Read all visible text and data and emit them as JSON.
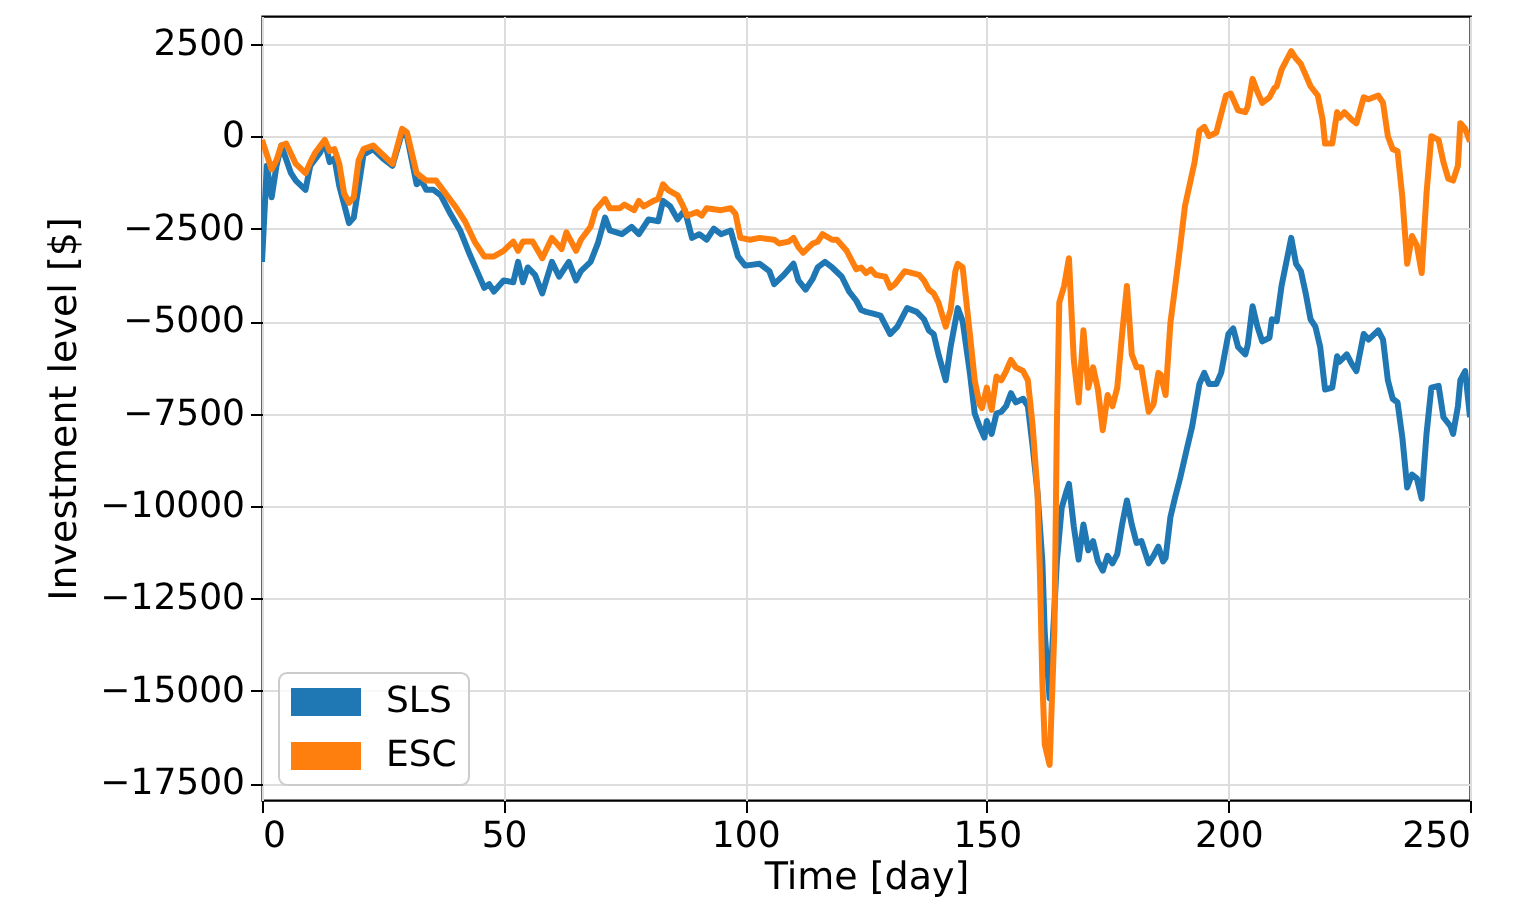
{
  "chart_data": {
    "type": "line",
    "xlabel": "Time [day]",
    "ylabel": "Investment level [$]",
    "xlim": [
      0,
      250
    ],
    "xticks": [
      0,
      50,
      100,
      150,
      200,
      250
    ],
    "ylim": [
      -17950,
      3250
    ],
    "yticks": [
      2500,
      0,
      {
        "value": -2500,
        "label": "−2500"
      },
      {
        "value": -5000,
        "label": "−5000"
      },
      {
        "value": -7500,
        "label": "−7500"
      },
      {
        "value": -10000,
        "label": "−10000"
      },
      {
        "value": -12500,
        "label": "−12500"
      },
      {
        "value": -15000,
        "label": "−15000"
      },
      {
        "value": -17500,
        "label": "−17500"
      }
    ],
    "grid": true,
    "legend": "bottom left",
    "series": [
      {
        "name": "SLS",
        "color": "#1f77b4",
        "x": [
          0,
          1,
          2,
          3,
          4,
          6,
          7,
          9,
          10,
          12,
          13,
          14,
          15,
          16,
          18,
          19,
          21,
          23,
          25,
          27,
          29,
          30,
          32,
          33,
          34,
          35.5,
          37,
          39,
          41,
          43,
          44.5,
          46,
          47,
          48,
          50,
          52,
          53,
          54,
          55,
          56.5,
          58,
          60,
          61.5,
          63.5,
          65,
          66,
          68,
          69.5,
          71,
          72,
          74.5,
          76.5,
          78,
          80,
          82,
          83,
          84.5,
          86,
          87.5,
          89,
          90.5,
          92,
          93.5,
          95,
          97,
          98.5,
          100,
          103,
          105,
          106,
          108,
          110,
          111,
          112.5,
          114,
          115,
          116.5,
          118,
          120,
          121.5,
          123,
          124,
          125,
          126.5,
          128,
          130,
          131.5,
          133.5,
          135.5,
          137,
          138,
          139,
          140,
          141.5,
          142.5,
          144,
          145,
          146.5,
          147.5,
          148.5,
          149.5,
          150,
          151,
          152,
          153,
          154,
          155,
          156,
          157.5,
          158.5,
          159.5,
          160.5,
          161.5,
          162,
          163,
          164,
          164.5,
          165.5,
          166.5,
          167,
          168,
          169,
          170,
          171,
          172,
          173,
          174,
          175,
          176,
          177,
          178,
          179,
          180,
          181,
          182,
          182.5,
          183.5,
          184.5,
          185.5,
          186.5,
          187,
          188,
          189,
          190,
          191.5,
          192.5,
          194,
          195,
          196,
          197.5,
          198.5,
          200,
          201,
          202,
          203.5,
          204,
          205,
          206,
          207,
          208.5,
          209,
          210,
          211,
          213,
          214,
          215,
          216,
          217,
          218,
          219,
          220,
          221.5,
          222.5,
          223,
          224.5,
          225.5,
          226.5,
          228,
          229,
          231,
          232,
          233,
          234,
          235,
          236,
          237,
          238,
          239,
          240,
          241,
          242,
          243.5,
          244.5,
          246,
          246.5,
          247.5,
          248,
          249,
          250
        ],
        "values": [
          -3400,
          -800,
          -1650,
          -800,
          -250,
          -1000,
          -1200,
          -1450,
          -800,
          -450,
          -150,
          -700,
          -600,
          -1350,
          -2350,
          -2200,
          -500,
          -350,
          -600,
          -800,
          100,
          0,
          -1300,
          -1200,
          -1450,
          -1450,
          -1600,
          -2100,
          -2550,
          -3200,
          -3650,
          -4100,
          -4000,
          -4200,
          -3900,
          -3950,
          -3400,
          -3950,
          -3550,
          -3750,
          -4250,
          -3400,
          -3800,
          -3400,
          -3900,
          -3650,
          -3400,
          -2900,
          -2200,
          -2550,
          -2650,
          -2450,
          -2650,
          -2250,
          -2300,
          -1750,
          -1900,
          -2250,
          -2000,
          -2750,
          -2650,
          -2800,
          -2500,
          -2650,
          -2550,
          -3250,
          -3500,
          -3450,
          -3650,
          -4000,
          -3750,
          -3450,
          -3900,
          -4150,
          -3850,
          -3550,
          -3400,
          -3550,
          -3800,
          -4200,
          -4450,
          -4700,
          -4750,
          -4800,
          -4850,
          -5350,
          -5150,
          -4650,
          -4750,
          -4950,
          -5250,
          -5350,
          -5900,
          -6600,
          -5700,
          -4650,
          -5000,
          -6400,
          -7500,
          -7850,
          -8150,
          -7700,
          -8050,
          -7500,
          -7450,
          -7300,
          -6950,
          -7200,
          -7100,
          -7300,
          -8400,
          -9650,
          -11500,
          -13450,
          -15200,
          -12750,
          -11500,
          -10050,
          -9600,
          -9400,
          -10550,
          -11450,
          -10500,
          -11200,
          -10950,
          -11500,
          -11750,
          -11350,
          -11550,
          -11300,
          -10500,
          -9850,
          -10500,
          -11000,
          -10950,
          -11150,
          -11550,
          -11350,
          -11100,
          -11500,
          -11400,
          -10300,
          -9750,
          -9250,
          -8400,
          -7850,
          -6700,
          -6400,
          -6700,
          -6700,
          -6400,
          -5350,
          -5200,
          -5700,
          -5900,
          -5650,
          -4600,
          -5150,
          -5550,
          -5450,
          -4950,
          -5000,
          -4050,
          -2750,
          -3450,
          -3650,
          -4250,
          -4950,
          -5150,
          -5700,
          -6850,
          -6800,
          -5950,
          -6100,
          -5900,
          -6150,
          -6350,
          -5350,
          -5500,
          -5250,
          -5500,
          -6600,
          -7100,
          -7200,
          -8150,
          -9500,
          -9150,
          -9250,
          -9800,
          -8050,
          -6800,
          -6750,
          -7600,
          -7850,
          -8050,
          -7300,
          -6600,
          -6350,
          -7600
        ]
      },
      {
        "name": "ESC",
        "color": "#ff7f0e",
        "x": [
          0,
          2,
          3,
          4,
          5,
          7,
          9,
          10,
          11,
          13,
          14,
          15,
          16,
          17,
          18,
          19,
          20,
          21,
          23,
          25,
          27,
          29,
          30,
          32,
          34,
          36,
          38,
          40,
          42,
          44,
          46,
          48,
          50,
          52,
          53,
          54,
          56,
          58,
          60,
          62,
          63,
          65,
          66,
          68,
          69,
          71,
          72,
          74,
          75,
          77,
          78,
          79,
          81,
          82,
          83,
          84,
          86,
          87,
          88,
          90,
          91,
          92,
          95,
          97,
          98,
          99,
          101,
          103,
          106,
          107,
          109,
          110,
          111,
          112,
          114,
          115,
          116,
          118,
          119,
          121,
          122,
          123,
          124,
          125,
          126,
          127,
          129,
          130,
          131,
          133,
          136,
          137,
          138,
          139,
          140,
          141.5,
          142.5,
          143.5,
          144,
          145,
          146.5,
          147.5,
          148.5,
          149,
          150,
          151,
          152,
          153,
          154,
          155,
          156,
          157.5,
          158.5,
          159.5,
          160.5,
          161,
          161.5,
          162,
          163,
          164,
          164.5,
          165,
          166,
          167,
          168,
          169,
          170,
          171,
          172,
          173,
          174,
          175,
          176,
          177,
          178,
          179,
          180,
          181,
          182,
          183.5,
          184.5,
          185.5,
          186,
          187,
          188,
          189,
          190,
          191,
          193,
          194,
          195,
          196,
          197.5,
          198,
          199.5,
          200.5,
          202,
          203.5,
          204,
          205,
          206,
          207,
          208.5,
          209.5,
          210,
          211,
          213,
          214,
          215,
          216,
          217,
          218.5,
          219.5,
          220,
          221.5,
          222.5,
          223,
          224,
          225.5,
          226.5,
          228,
          229,
          231,
          232,
          233,
          234,
          235,
          236,
          237,
          238,
          239,
          240,
          241,
          242,
          243.5,
          244.5,
          245.5,
          246.5,
          247.5,
          248,
          249,
          250
        ],
        "values": [
          -100,
          -900,
          -650,
          -250,
          -200,
          -750,
          -1000,
          -700,
          -450,
          -100,
          -400,
          -350,
          -750,
          -1550,
          -1800,
          -1650,
          -650,
          -350,
          -250,
          -500,
          -750,
          200,
          100,
          -1000,
          -1200,
          -1200,
          -1550,
          -1900,
          -2300,
          -2850,
          -3250,
          -3250,
          -3100,
          -2850,
          -3100,
          -2850,
          -2850,
          -3300,
          -2750,
          -3050,
          -2600,
          -3100,
          -2800,
          -2450,
          -2000,
          -1700,
          -1950,
          -1950,
          -1850,
          -2000,
          -1750,
          -1900,
          -1750,
          -1700,
          -1300,
          -1450,
          -1600,
          -1850,
          -2150,
          -2050,
          -2150,
          -1950,
          -2000,
          -1950,
          -2100,
          -2750,
          -2800,
          -2750,
          -2800,
          -2900,
          -2850,
          -2750,
          -3000,
          -3150,
          -2900,
          -2850,
          -2650,
          -2800,
          -2800,
          -3100,
          -3350,
          -3600,
          -3550,
          -3700,
          -3600,
          -3750,
          -3800,
          -4100,
          -4000,
          -3650,
          -3750,
          -3900,
          -4150,
          -4250,
          -4500,
          -5150,
          -4700,
          -3650,
          -3450,
          -3550,
          -5350,
          -6600,
          -7250,
          -7350,
          -6800,
          -7400,
          -6500,
          -6600,
          -6350,
          -6050,
          -6250,
          -6350,
          -6600,
          -7850,
          -9650,
          -11850,
          -14750,
          -16450,
          -17000,
          -13300,
          -7850,
          -4500,
          -4050,
          -3300,
          -6050,
          -7200,
          -5250,
          -6800,
          -6250,
          -6850,
          -7950,
          -7000,
          -7300,
          -6800,
          -5350,
          -4050,
          -5900,
          -6250,
          -6250,
          -7450,
          -7250,
          -6400,
          -6450,
          -7000,
          -5050,
          -4050,
          -3000,
          -1900,
          -700,
          150,
          250,
          0,
          100,
          350,
          1100,
          1150,
          700,
          650,
          800,
          1550,
          1200,
          900,
          1050,
          1300,
          1350,
          1800,
          2300,
          2100,
          1950,
          1650,
          1350,
          1100,
          450,
          -200,
          -200,
          650,
          500,
          650,
          450,
          350,
          1050,
          1000,
          1100,
          900,
          0,
          -350,
          -400,
          -1650,
          -3450,
          -2700,
          -2950,
          -3700,
          -1550,
          0,
          -100,
          -700,
          -1150,
          -1200,
          -800,
          350,
          200,
          -150
        ]
      }
    ]
  }
}
